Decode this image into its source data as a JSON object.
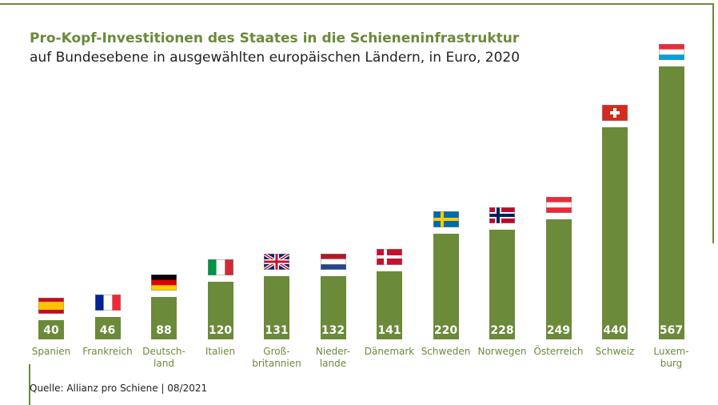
{
  "chart_data": {
    "type": "bar",
    "title": "Pro-Kopf-Investitionen des Staates in die Schieneninfrastruktur",
    "subtitle": "auf Bundesebene in ausgewählten europäischen Ländern, in Euro, 2020",
    "source": "Quelle: Allianz pro Schiene | 08/2021",
    "categories": [
      "Spanien",
      "Frankreich",
      "Deutsch-\nland",
      "Italien",
      "Groß-\nbritannien",
      "Nieder-\nlande",
      "Dänemark",
      "Schweden",
      "Norwegen",
      "Österreich",
      "Schweiz",
      "Luxem-\nburg"
    ],
    "values": [
      40,
      46,
      88,
      120,
      131,
      132,
      141,
      220,
      228,
      249,
      440,
      567
    ],
    "color": "#6b8a3a"
  }
}
